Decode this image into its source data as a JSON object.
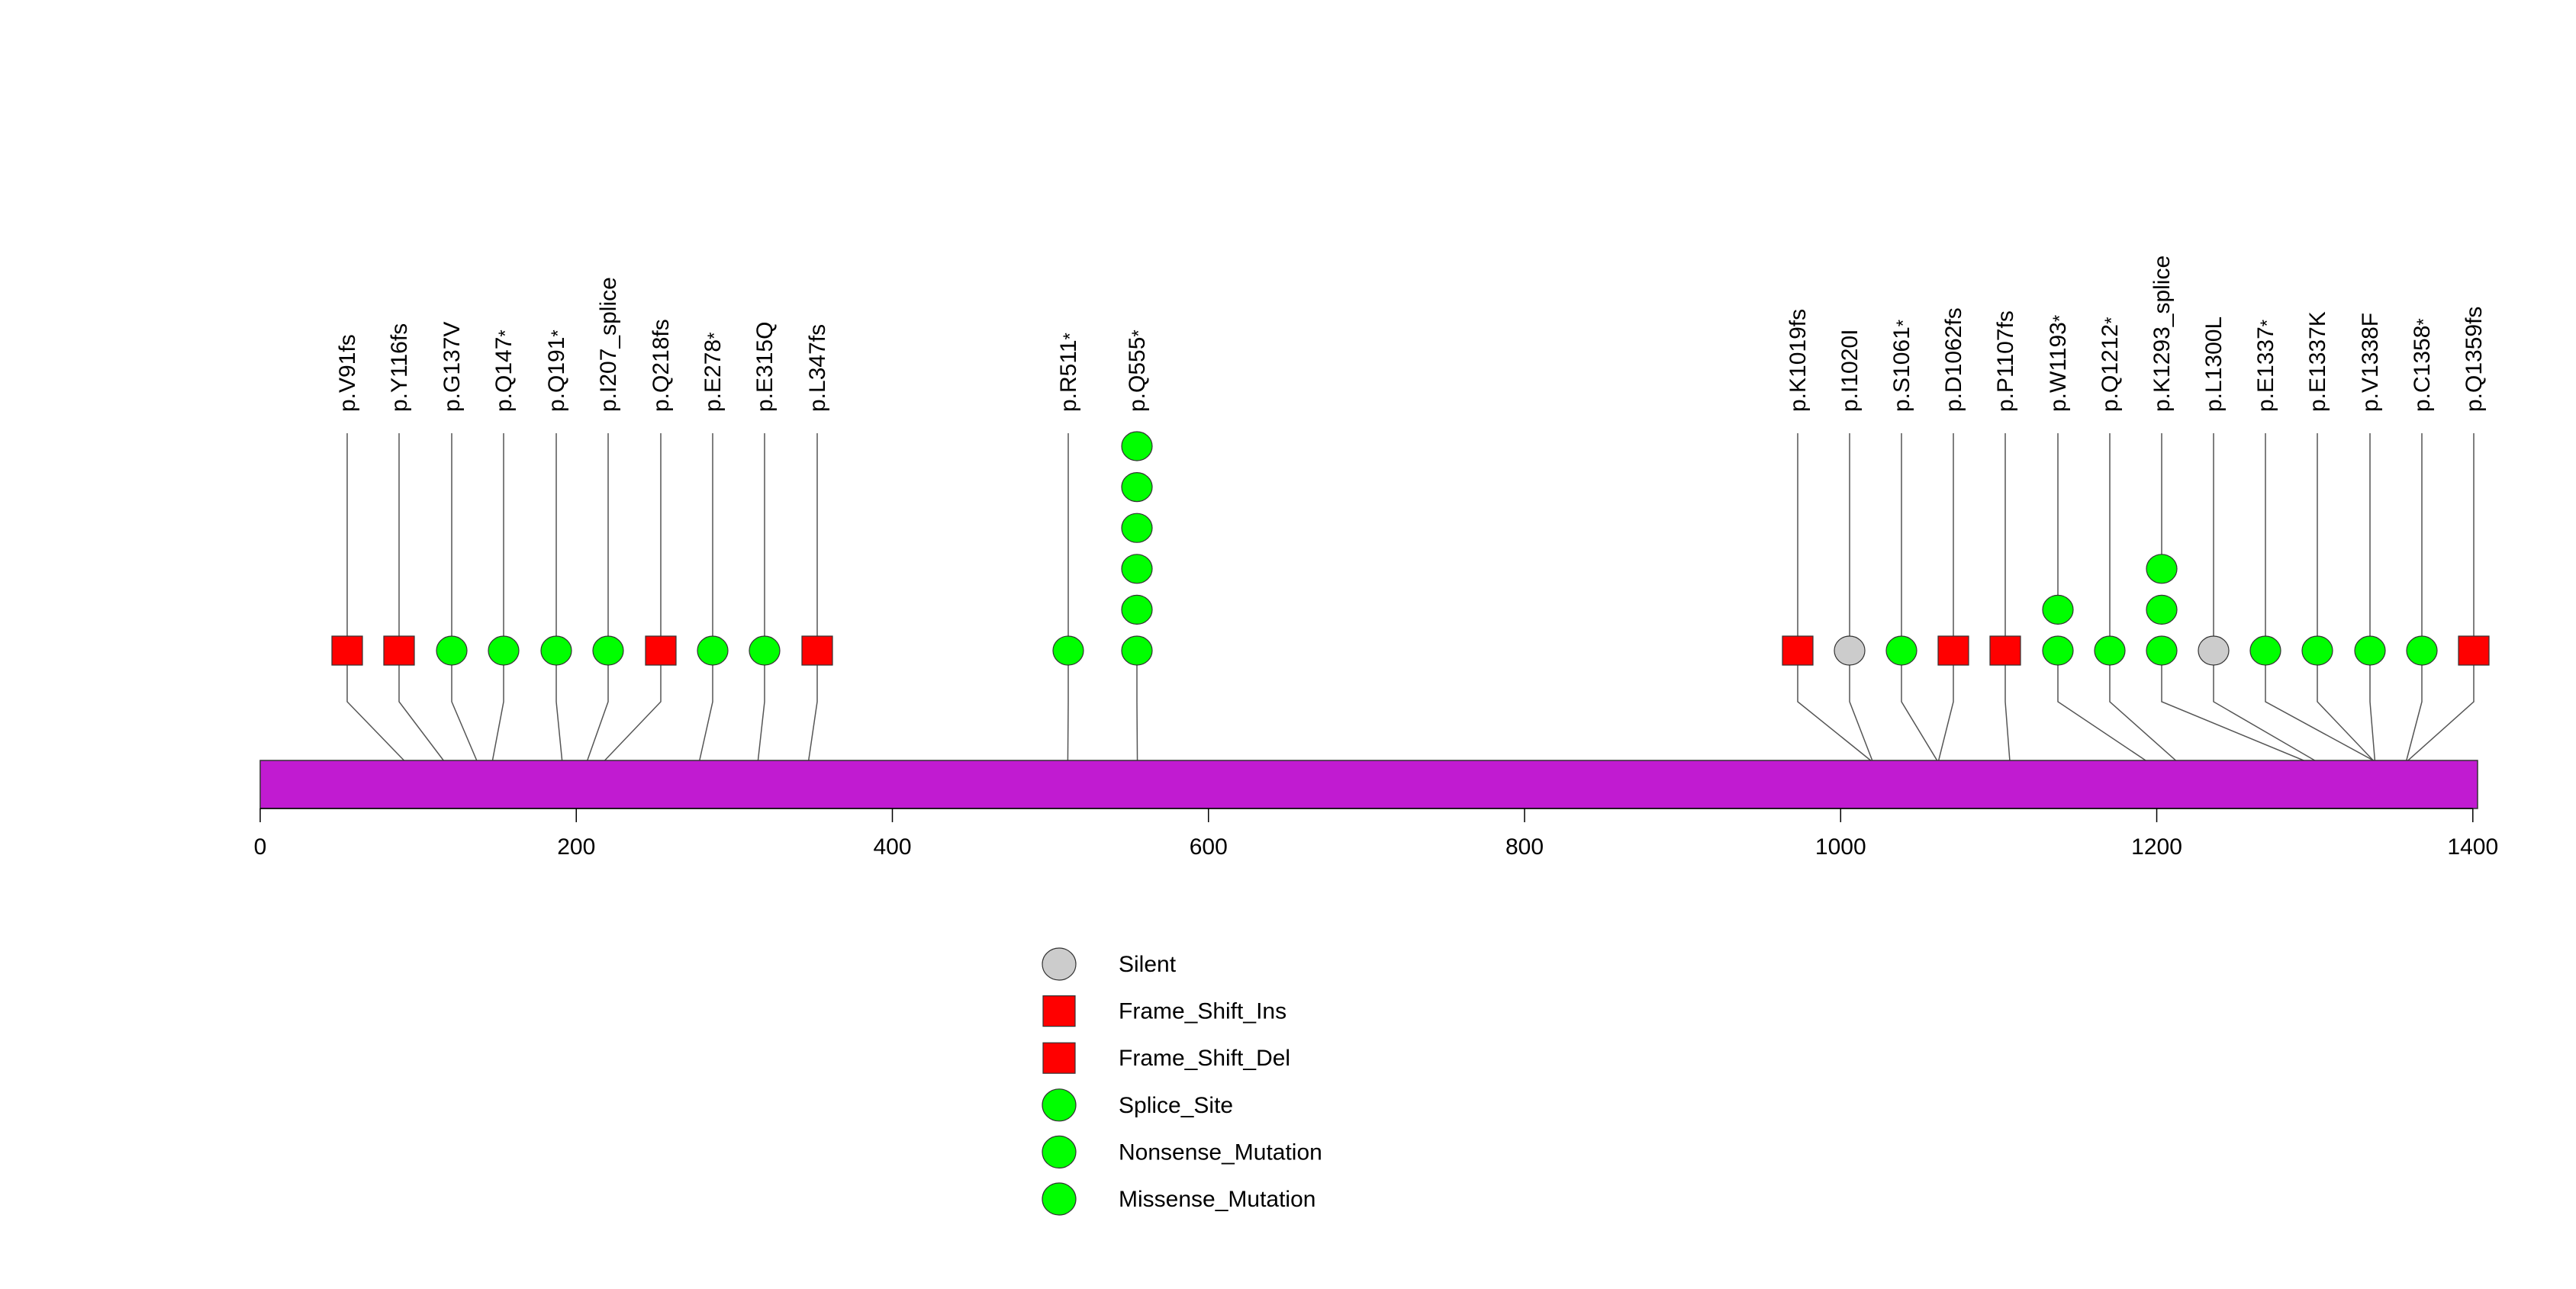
{
  "chart_data": {
    "type": "lollipop",
    "title": "",
    "xlabel": "",
    "ylabel": "",
    "protein_length": 1403,
    "xlim": [
      0,
      1403
    ],
    "x_ticks": [
      0,
      200,
      400,
      600,
      800,
      1000,
      1200,
      1400
    ],
    "domain_color": "#c11bd1",
    "mutations": [
      {
        "label": "p.V91fs",
        "pos": 91,
        "type": "Frame_Shift_Del",
        "count": 1
      },
      {
        "label": "p.Y116fs",
        "pos": 116,
        "type": "Frame_Shift_Del",
        "count": 1
      },
      {
        "label": "p.G137V",
        "pos": 137,
        "type": "Missense_Mutation",
        "count": 1
      },
      {
        "label": "p.Q147*",
        "pos": 147,
        "type": "Nonsense_Mutation",
        "count": 1
      },
      {
        "label": "p.Q191*",
        "pos": 191,
        "type": "Nonsense_Mutation",
        "count": 1
      },
      {
        "label": "p.I207_splice",
        "pos": 207,
        "type": "Splice_Site",
        "count": 1
      },
      {
        "label": "p.Q218fs",
        "pos": 218,
        "type": "Frame_Shift_Del",
        "count": 1
      },
      {
        "label": "p.E278*",
        "pos": 278,
        "type": "Nonsense_Mutation",
        "count": 1
      },
      {
        "label": "p.E315Q",
        "pos": 315,
        "type": "Missense_Mutation",
        "count": 1
      },
      {
        "label": "p.L347fs",
        "pos": 347,
        "type": "Frame_Shift_Del",
        "count": 1
      },
      {
        "label": "p.R511*",
        "pos": 511,
        "type": "Nonsense_Mutation",
        "count": 1
      },
      {
        "label": "p.Q555*",
        "pos": 555,
        "type": "Nonsense_Mutation",
        "count": 6
      },
      {
        "label": "p.K1019fs",
        "pos": 1019,
        "type": "Frame_Shift_Del",
        "count": 1
      },
      {
        "label": "p.I1020I",
        "pos": 1020,
        "type": "Silent",
        "count": 1
      },
      {
        "label": "p.S1061*",
        "pos": 1061,
        "type": "Nonsense_Mutation",
        "count": 1
      },
      {
        "label": "p.D1062fs",
        "pos": 1062,
        "type": "Frame_Shift_Del",
        "count": 1
      },
      {
        "label": "p.P1107fs",
        "pos": 1107,
        "type": "Frame_Shift_Del",
        "count": 1
      },
      {
        "label": "p.W1193*",
        "pos": 1193,
        "type": "Nonsense_Mutation",
        "count": 2
      },
      {
        "label": "p.Q1212*",
        "pos": 1212,
        "type": "Nonsense_Mutation",
        "count": 1
      },
      {
        "label": "p.K1293_splice",
        "pos": 1293,
        "type": "Splice_Site",
        "count": 3
      },
      {
        "label": "p.L1300L",
        "pos": 1300,
        "type": "Silent",
        "count": 1
      },
      {
        "label": "p.E1337*",
        "pos": 1337,
        "type": "Nonsense_Mutation",
        "count": 1
      },
      {
        "label": "p.E1337K",
        "pos": 1337,
        "type": "Missense_Mutation",
        "count": 1
      },
      {
        "label": "p.V1338F",
        "pos": 1338,
        "type": "Missense_Mutation",
        "count": 1
      },
      {
        "label": "p.C1358*",
        "pos": 1358,
        "type": "Nonsense_Mutation",
        "count": 1
      },
      {
        "label": "p.Q1359fs",
        "pos": 1359,
        "type": "Frame_Shift_Del",
        "count": 1
      }
    ],
    "legend": [
      {
        "label": "Silent",
        "shape": "circle",
        "color": "#cccccc"
      },
      {
        "label": "Frame_Shift_Ins",
        "shape": "square",
        "color": "#ff0000"
      },
      {
        "label": "Frame_Shift_Del",
        "shape": "square",
        "color": "#ff0000"
      },
      {
        "label": "Splice_Site",
        "shape": "circle",
        "color": "#00ff00"
      },
      {
        "label": "Nonsense_Mutation",
        "shape": "circle",
        "color": "#00ff00"
      },
      {
        "label": "Missense_Mutation",
        "shape": "circle",
        "color": "#00ff00"
      }
    ],
    "legend_position": "bottom-center"
  }
}
